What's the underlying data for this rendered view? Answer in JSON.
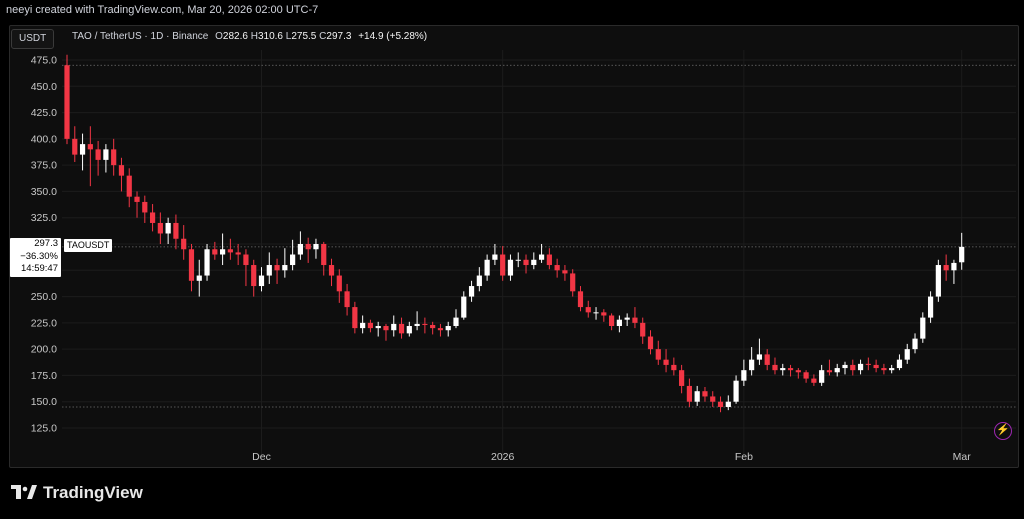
{
  "header": {
    "created_text": "neeyi created with TradingView.com, Mar 20, 2026 02:00 UTC-7"
  },
  "toolbar": {
    "currency": "USDT"
  },
  "legend": {
    "symbol": "TAO / TetherUS · 1D · Binance",
    "open_label": "O",
    "open": "282.6",
    "high_label": "H",
    "high": "310.6",
    "low_label": "L",
    "low": "275.5",
    "close_label": "C",
    "close": "297.3",
    "change": "+14.9 (+5.28%)"
  },
  "price_tag": {
    "price": "297.3",
    "change_pct": "−36.30%",
    "countdown": "14:59:47",
    "symbol": "TAOUSDT"
  },
  "brand": {
    "name": "TradingView"
  },
  "colors": {
    "up": "#ffffff",
    "down": "#f23645",
    "grid": "#1c1c1c",
    "axis_text": "#c8c8c8"
  },
  "icons": {
    "alert": "lightning-icon",
    "logo": "tradingview-logo-icon"
  },
  "chart_data": {
    "type": "candlestick",
    "title": "TAO / TetherUS · 1D · Binance",
    "ylim": [
      125,
      475
    ],
    "y_ticks": [
      125,
      150,
      175,
      200,
      225,
      250,
      275,
      300,
      325,
      350,
      375,
      400,
      425,
      450,
      475
    ],
    "y_tick_labels": [
      "125.0",
      "150.0",
      "175.0",
      "200.0",
      "225.0",
      "250.0",
      "275.0",
      "300.0",
      "325.0",
      "350.0",
      "375.0",
      "400.0",
      "425.0",
      "450.0",
      "475.0"
    ],
    "x_labels": [
      {
        "label": "Dec",
        "index": 25
      },
      {
        "label": "2026",
        "index": 56
      },
      {
        "label": "Feb",
        "index": 87
      },
      {
        "label": "Mar",
        "index": 115
      }
    ],
    "reference_lines": [
      470,
      145,
      297.3
    ],
    "closes": [
      400,
      385,
      395,
      390,
      380,
      390,
      375,
      365,
      345,
      340,
      330,
      320,
      310,
      320,
      305,
      295,
      265,
      270,
      295,
      290,
      295,
      292,
      290,
      280,
      260,
      270,
      280,
      275,
      280,
      290,
      300,
      295,
      300,
      280,
      270,
      255,
      240,
      220,
      225,
      220,
      222,
      218,
      224,
      215,
      222,
      224,
      223,
      220,
      218,
      222,
      230,
      250,
      260,
      270,
      285,
      290,
      270,
      285,
      285,
      280,
      285,
      290,
      280,
      275,
      272,
      255,
      240,
      235,
      235,
      232,
      222,
      228,
      230,
      225,
      212,
      200,
      190,
      185,
      180,
      165,
      150,
      160,
      155,
      150,
      145,
      150,
      170,
      180,
      190,
      195,
      185,
      180,
      182,
      180,
      178,
      172,
      168,
      180,
      178,
      182,
      185,
      180,
      186,
      185,
      182,
      180,
      182,
      190,
      200,
      210,
      230,
      250,
      280,
      275,
      282,
      297.3
    ],
    "candles": [
      [
        470,
        480,
        395,
        400
      ],
      [
        400,
        412,
        378,
        385
      ],
      [
        385,
        405,
        370,
        395
      ],
      [
        395,
        412,
        355,
        390
      ],
      [
        390,
        398,
        365,
        380
      ],
      [
        380,
        395,
        368,
        390
      ],
      [
        390,
        400,
        365,
        375
      ],
      [
        375,
        382,
        350,
        365
      ],
      [
        365,
        372,
        335,
        345
      ],
      [
        345,
        350,
        325,
        340
      ],
      [
        340,
        346,
        320,
        330
      ],
      [
        330,
        338,
        312,
        320
      ],
      [
        320,
        330,
        300,
        310
      ],
      [
        310,
        325,
        300,
        320
      ],
      [
        320,
        328,
        295,
        305
      ],
      [
        305,
        318,
        285,
        295
      ],
      [
        295,
        300,
        255,
        265
      ],
      [
        265,
        285,
        250,
        270
      ],
      [
        270,
        300,
        265,
        295
      ],
      [
        295,
        302,
        285,
        290
      ],
      [
        290,
        310,
        280,
        295
      ],
      [
        295,
        305,
        285,
        292
      ],
      [
        292,
        300,
        280,
        290
      ],
      [
        290,
        295,
        260,
        280
      ],
      [
        280,
        285,
        250,
        260
      ],
      [
        260,
        278,
        255,
        270
      ],
      [
        270,
        292,
        262,
        280
      ],
      [
        280,
        286,
        262,
        275
      ],
      [
        275,
        296,
        268,
        280
      ],
      [
        280,
        304,
        275,
        290
      ],
      [
        290,
        312,
        285,
        300
      ],
      [
        300,
        306,
        282,
        295
      ],
      [
        295,
        305,
        286,
        300
      ],
      [
        300,
        302,
        270,
        280
      ],
      [
        280,
        286,
        260,
        270
      ],
      [
        270,
        276,
        244,
        255
      ],
      [
        255,
        262,
        232,
        240
      ],
      [
        240,
        245,
        215,
        220
      ],
      [
        220,
        232,
        215,
        225
      ],
      [
        225,
        228,
        216,
        220
      ],
      [
        220,
        226,
        212,
        222
      ],
      [
        222,
        224,
        208,
        218
      ],
      [
        218,
        232,
        212,
        224
      ],
      [
        224,
        230,
        210,
        215
      ],
      [
        215,
        226,
        212,
        222
      ],
      [
        222,
        236,
        218,
        224
      ],
      [
        224,
        230,
        215,
        223
      ],
      [
        223,
        226,
        214,
        220
      ],
      [
        220,
        224,
        212,
        218
      ],
      [
        218,
        226,
        212,
        222
      ],
      [
        222,
        238,
        220,
        230
      ],
      [
        230,
        255,
        228,
        250
      ],
      [
        250,
        265,
        245,
        260
      ],
      [
        260,
        278,
        255,
        270
      ],
      [
        270,
        290,
        265,
        285
      ],
      [
        285,
        300,
        280,
        290
      ],
      [
        290,
        298,
        265,
        270
      ],
      [
        270,
        290,
        265,
        285
      ],
      [
        285,
        292,
        278,
        285
      ],
      [
        285,
        290,
        272,
        280
      ],
      [
        280,
        292,
        276,
        285
      ],
      [
        285,
        300,
        282,
        290
      ],
      [
        290,
        296,
        276,
        280
      ],
      [
        280,
        286,
        268,
        275
      ],
      [
        275,
        280,
        265,
        272
      ],
      [
        272,
        276,
        250,
        255
      ],
      [
        255,
        260,
        236,
        240
      ],
      [
        240,
        246,
        230,
        235
      ],
      [
        235,
        240,
        228,
        235
      ],
      [
        235,
        238,
        226,
        232
      ],
      [
        232,
        234,
        218,
        222
      ],
      [
        222,
        232,
        216,
        228
      ],
      [
        228,
        234,
        222,
        230
      ],
      [
        230,
        240,
        220,
        225
      ],
      [
        225,
        230,
        205,
        212
      ],
      [
        212,
        218,
        195,
        200
      ],
      [
        200,
        208,
        185,
        190
      ],
      [
        190,
        200,
        178,
        185
      ],
      [
        185,
        192,
        175,
        180
      ],
      [
        180,
        185,
        158,
        165
      ],
      [
        165,
        172,
        145,
        150
      ],
      [
        150,
        165,
        146,
        160
      ],
      [
        160,
        164,
        150,
        155
      ],
      [
        155,
        160,
        145,
        150
      ],
      [
        150,
        155,
        140,
        145
      ],
      [
        145,
        156,
        142,
        150
      ],
      [
        150,
        175,
        148,
        170
      ],
      [
        170,
        190,
        165,
        180
      ],
      [
        180,
        202,
        175,
        190
      ],
      [
        190,
        210,
        185,
        195
      ],
      [
        195,
        200,
        180,
        185
      ],
      [
        185,
        192,
        176,
        180
      ],
      [
        180,
        186,
        175,
        182
      ],
      [
        182,
        185,
        174,
        180
      ],
      [
        180,
        182,
        172,
        178
      ],
      [
        178,
        180,
        168,
        172
      ],
      [
        172,
        176,
        165,
        168
      ],
      [
        168,
        185,
        165,
        180
      ],
      [
        180,
        190,
        175,
        178
      ],
      [
        178,
        186,
        174,
        182
      ],
      [
        182,
        188,
        176,
        185
      ],
      [
        185,
        190,
        175,
        180
      ],
      [
        180,
        190,
        176,
        186
      ],
      [
        186,
        192,
        180,
        185
      ],
      [
        185,
        190,
        178,
        182
      ],
      [
        182,
        186,
        176,
        180
      ],
      [
        180,
        185,
        177,
        182
      ],
      [
        182,
        195,
        180,
        190
      ],
      [
        190,
        205,
        186,
        200
      ],
      [
        200,
        215,
        196,
        210
      ],
      [
        210,
        235,
        206,
        230
      ],
      [
        230,
        255,
        225,
        250
      ],
      [
        250,
        285,
        245,
        280
      ],
      [
        280,
        290,
        265,
        275
      ],
      [
        275,
        285,
        262,
        282
      ],
      [
        282.6,
        310.6,
        275.5,
        297.3
      ]
    ]
  }
}
